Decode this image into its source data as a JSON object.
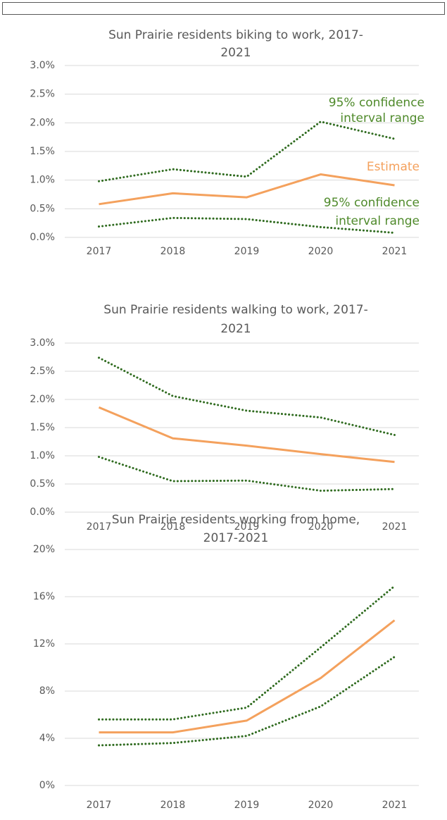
{
  "chart_data": [
    {
      "type": "line",
      "title": [
        "Sun Prairie residents biking to work, 2017-",
        "2021"
      ],
      "categories": [
        "2017",
        "2018",
        "2019",
        "2020",
        "2021"
      ],
      "ylim": [
        0,
        3.0
      ],
      "yticks": [
        {
          "value": 0,
          "label": "0.0%"
        },
        {
          "value": 0.5,
          "label": "0.5%"
        },
        {
          "value": 1.0,
          "label": "1.0%"
        },
        {
          "value": 1.5,
          "label": "1.5%"
        },
        {
          "value": 2.0,
          "label": "2.0%"
        },
        {
          "value": 2.5,
          "label": "2.5%"
        },
        {
          "value": 3.0,
          "label": "3.0%"
        }
      ],
      "grid": true,
      "series": [
        {
          "color": "#f4a15d",
          "dash": "solid",
          "values": [
            0.58,
            0.77,
            0.7,
            1.1,
            0.91
          ]
        },
        {
          "color": "#2f6b1f",
          "dash": "dotted",
          "values": [
            0.98,
            1.19,
            1.06,
            2.02,
            1.72
          ]
        },
        {
          "color": "#2f6b1f",
          "dash": "dotted",
          "values": [
            0.19,
            0.34,
            0.32,
            0.18,
            0.08
          ]
        }
      ],
      "annotations": [
        {
          "lines": [
            "95% confidence",
            "interval range"
          ],
          "color": "#4f8a2b"
        },
        {
          "lines": [
            "Estimate"
          ],
          "color": "#f4a15d"
        },
        {
          "lines": [
            "95% confidence",
            "interval range"
          ],
          "color": "#4f8a2b"
        }
      ]
    },
    {
      "type": "line",
      "title": [
        "Sun Prairie residents walking to work, 2017-",
        "2021"
      ],
      "categories": [
        "2017",
        "2018",
        "2019",
        "2020",
        "2021"
      ],
      "ylim": [
        0,
        3.0
      ],
      "yticks": [
        {
          "value": 0,
          "label": "0.0%"
        },
        {
          "value": 0.5,
          "label": "0.5%"
        },
        {
          "value": 1.0,
          "label": "1.0%"
        },
        {
          "value": 1.5,
          "label": "1.5%"
        },
        {
          "value": 2.0,
          "label": "2.0%"
        },
        {
          "value": 2.5,
          "label": "2.5%"
        },
        {
          "value": 3.0,
          "label": "3.0%"
        }
      ],
      "grid": true,
      "series": [
        {
          "color": "#f4a15d",
          "dash": "solid",
          "values": [
            1.86,
            1.31,
            1.18,
            1.03,
            0.89
          ]
        },
        {
          "color": "#2f6b1f",
          "dash": "dotted",
          "values": [
            2.74,
            2.06,
            1.8,
            1.68,
            1.37
          ]
        },
        {
          "color": "#2f6b1f",
          "dash": "dotted",
          "values": [
            0.98,
            0.55,
            0.56,
            0.38,
            0.41
          ]
        }
      ]
    },
    {
      "type": "line",
      "title": [
        "Sun Prairie residents working from home,",
        "2017-2021"
      ],
      "categories": [
        "2017",
        "2018",
        "2019",
        "2020",
        "2021"
      ],
      "ylim": [
        0,
        20
      ],
      "yticks": [
        {
          "value": 0,
          "label": "0%"
        },
        {
          "value": 4,
          "label": "4%"
        },
        {
          "value": 8,
          "label": "8%"
        },
        {
          "value": 12,
          "label": "12%"
        },
        {
          "value": 16,
          "label": "16%"
        },
        {
          "value": 20,
          "label": "20%"
        }
      ],
      "grid": true,
      "series": [
        {
          "color": "#f4a15d",
          "dash": "solid",
          "values": [
            4.5,
            4.5,
            5.5,
            9.1,
            14.0
          ]
        },
        {
          "color": "#2f6b1f",
          "dash": "dotted",
          "values": [
            5.6,
            5.6,
            6.6,
            11.7,
            16.9
          ]
        },
        {
          "color": "#2f6b1f",
          "dash": "dotted",
          "values": [
            3.4,
            3.6,
            4.2,
            6.7,
            10.9
          ]
        }
      ]
    }
  ]
}
